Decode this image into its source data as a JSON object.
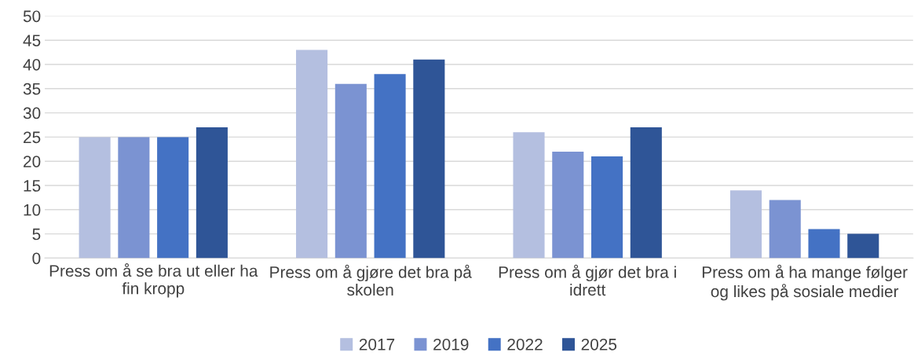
{
  "chart_data": {
    "type": "bar",
    "categories": [
      "Press om å se bra ut eller ha\nfin kropp",
      "Press om å gjøre det bra på\nskolen",
      "Press om å gjør det bra i\nidrett",
      "Press om å ha mange følger\nog likes på sosiale medier"
    ],
    "series": [
      {
        "name": "2017",
        "color": "#b4bfe0",
        "values": [
          25,
          43,
          26,
          14
        ]
      },
      {
        "name": "2019",
        "color": "#7b93d2",
        "values": [
          25,
          36,
          22,
          12
        ]
      },
      {
        "name": "2022",
        "color": "#4472c4",
        "values": [
          25,
          38,
          21,
          6
        ]
      },
      {
        "name": "2025",
        "color": "#2f5597",
        "values": [
          27,
          41,
          27,
          5
        ]
      }
    ],
    "ylim": [
      0,
      50
    ],
    "yticks": [
      0,
      5,
      10,
      15,
      20,
      25,
      30,
      35,
      40,
      45,
      50
    ],
    "grid": "y",
    "legend": "bottom"
  }
}
